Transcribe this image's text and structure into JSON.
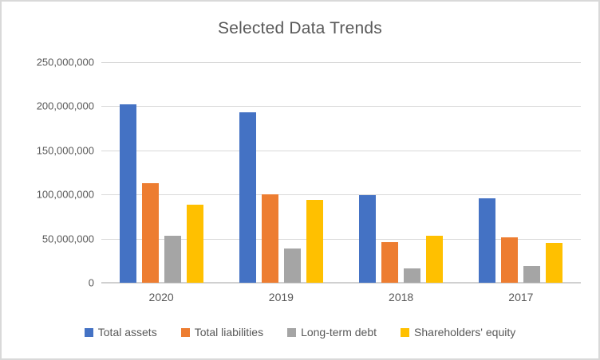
{
  "chart_data": {
    "type": "bar",
    "title": "Selected Data Trends",
    "categories": [
      "2020",
      "2019",
      "2018",
      "2017"
    ],
    "series": [
      {
        "name": "Total assets",
        "color": "#4472C4",
        "values": [
          202000000,
          193000000,
          99000000,
          96000000
        ]
      },
      {
        "name": "Total liabilities",
        "color": "#ED7D31",
        "values": [
          113000000,
          100000000,
          46000000,
          51000000
        ]
      },
      {
        "name": "Long-term debt",
        "color": "#A5A5A5",
        "values": [
          53000000,
          39000000,
          16000000,
          19000000
        ]
      },
      {
        "name": "Shareholders' equity",
        "color": "#FFC000",
        "values": [
          88000000,
          94000000,
          53000000,
          45000000
        ]
      }
    ],
    "ylim": [
      0,
      250000000
    ],
    "ytick_step": 50000000,
    "ytick_labels": [
      "250,000,000",
      "200,000,000",
      "150,000,000",
      "100,000,000",
      "50,000,000",
      "0"
    ],
    "grid": true,
    "legend_position": "bottom"
  },
  "colors": {
    "background": "#FFFFFF",
    "border": "#D9D9D9",
    "gridline": "#D9D9D9",
    "axis_text": "#595959",
    "title_text": "#595959"
  }
}
